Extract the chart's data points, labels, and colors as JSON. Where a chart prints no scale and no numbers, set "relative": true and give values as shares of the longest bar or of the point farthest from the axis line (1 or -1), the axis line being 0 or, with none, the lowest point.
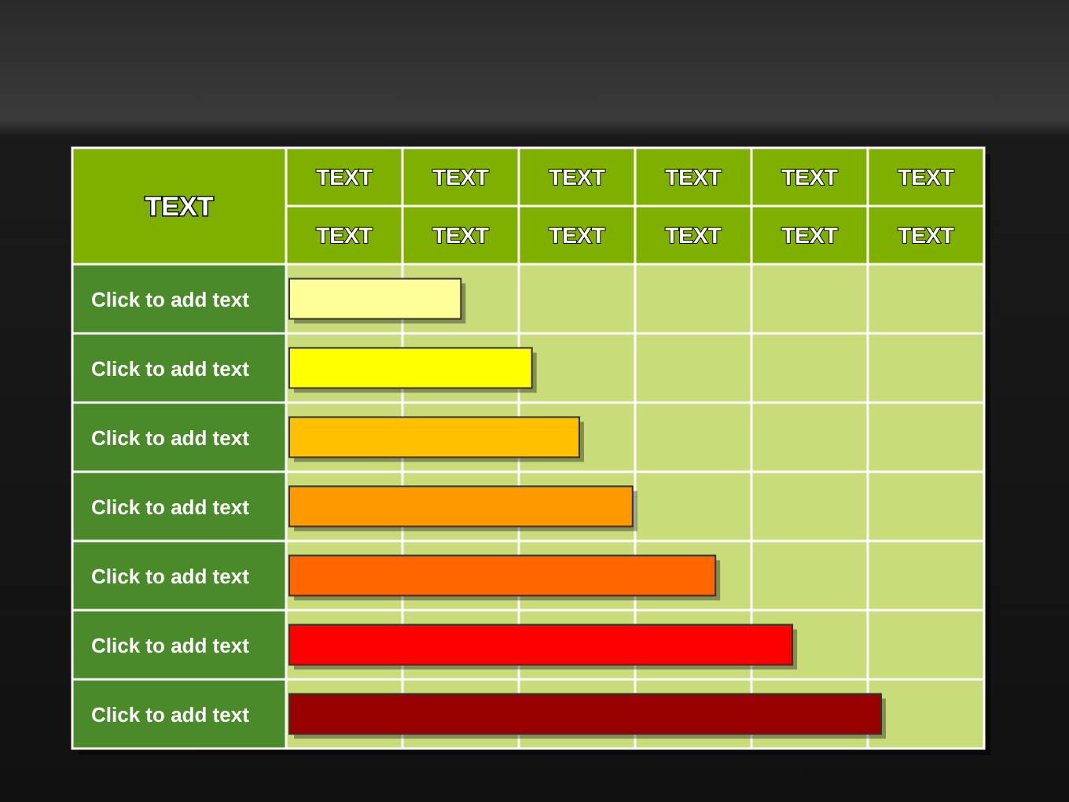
{
  "chart_data": {
    "type": "bar",
    "orientation": "horizontal",
    "relative": true,
    "ylabel": "TEXT",
    "categories": [
      "Click to add text",
      "Click to add text",
      "Click to add text",
      "Click to add text",
      "Click to add text",
      "Click to add text",
      "Click to add text"
    ],
    "values": [
      0.29,
      0.41,
      0.49,
      0.58,
      0.72,
      0.85,
      1
    ],
    "colors": [
      "#ffff99",
      "#ffff00",
      "#ffc000",
      "#ff9900",
      "#ff6600",
      "#ff0000",
      "#990000"
    ],
    "grid": true,
    "annotations": [
      "TEXT",
      "TEXT",
      "TEXT",
      "TEXT",
      "TEXT",
      "TEXT",
      "TEXT",
      "TEXT",
      "TEXT",
      "TEXT",
      "TEXT",
      "TEXT"
    ]
  }
}
